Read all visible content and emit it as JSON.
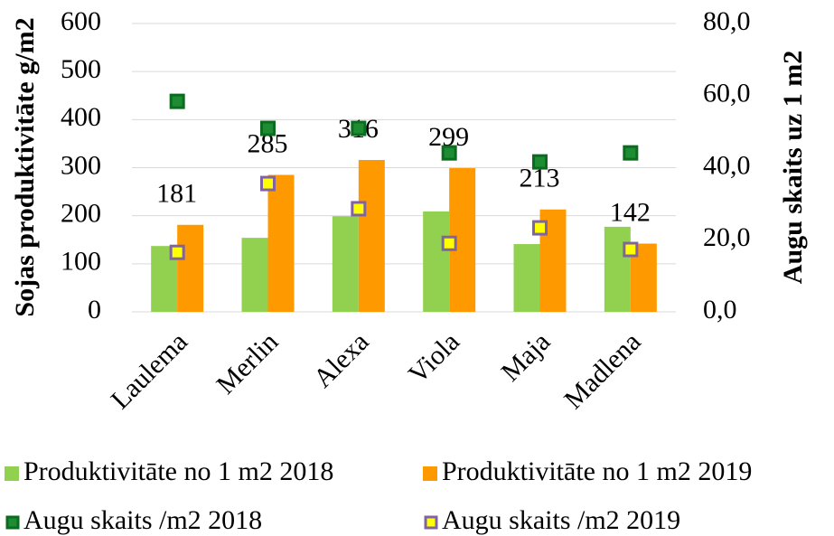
{
  "chart_data": {
    "type": "bar",
    "ylabel": "Sojas produktivitāte  g/m2",
    "y2label": "Augu skaits uz 1 m2",
    "categories": [
      "Laulema",
      "Merlin",
      "Alexa",
      "Viola",
      "Maja",
      "Madlena"
    ],
    "series": [
      {
        "name": "Produktivitāte no 1 m2 2018",
        "type": "bar",
        "color": "#92d050",
        "values": [
          137,
          154,
          199,
          209,
          141,
          177
        ]
      },
      {
        "name": "Produktivitāte no 1 m2 2019",
        "type": "bar",
        "color": "#ff9900",
        "values": [
          181,
          285,
          316,
          299,
          213,
          142
        ],
        "data_labels": true
      },
      {
        "name": "Augu skaits /m2 2018",
        "type": "scatter",
        "axis": "y2",
        "color": "#1e8c32",
        "edge": "#0b6b1e",
        "values": [
          58.4,
          50.9,
          50.9,
          44.1,
          41.6,
          44.1
        ]
      },
      {
        "name": "Augu skaits /m2 2019",
        "type": "scatter",
        "axis": "y2",
        "color": "#ffff00",
        "edge": "#8064a2",
        "values": [
          16.5,
          35.6,
          28.6,
          19.0,
          23.3,
          17.3
        ]
      }
    ],
    "ylim": [
      0,
      600
    ],
    "yticks": [
      0,
      100,
      200,
      300,
      400,
      500,
      600
    ],
    "y2lim": [
      0,
      80
    ],
    "y2ticks": [
      {
        "value": 0,
        "label": "0,0"
      },
      {
        "value": 20,
        "label": "20,0"
      },
      {
        "value": 40,
        "label": "40,0"
      },
      {
        "value": 60,
        "label": "60,0"
      },
      {
        "value": 80,
        "label": "80,0"
      }
    ],
    "grid": true,
    "legend": "bottom"
  }
}
